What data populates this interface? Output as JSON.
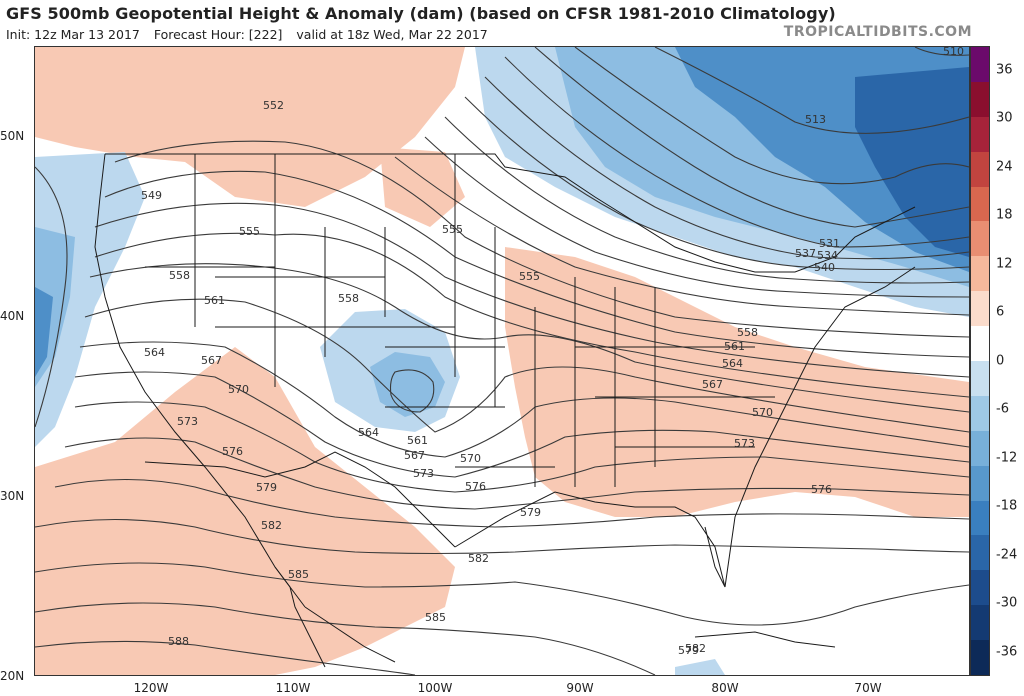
{
  "header": {
    "title": "GFS 500mb Geopotential Height & Anomaly (dam) (based on CFSR 1981-2010 Climatology)",
    "init": "Init: 12z Mar 13 2017",
    "forecast_hour": "Forecast Hour: [222]",
    "valid": "valid at 18z Wed, Mar 22 2017",
    "brand": "TROPICALTIDBITS.COM"
  },
  "latitude_labels": [
    "50N",
    "40N",
    "30N",
    "20N"
  ],
  "longitude_labels": [
    "120W",
    "110W",
    "100W",
    "90W",
    "80W",
    "70W"
  ],
  "colorbar": {
    "labels": [
      "36",
      "30",
      "24",
      "18",
      "12",
      "6",
      "0",
      "-6",
      "-12",
      "-18",
      "-24",
      "-30",
      "-36"
    ],
    "colors": [
      "#6b0a6b",
      "#8a0f2e",
      "#a6233a",
      "#c1443f",
      "#d8674f",
      "#e98e72",
      "#f6b89c",
      "#fbdccc",
      "#ffffff",
      "#c8dff0",
      "#9ec8e6",
      "#78b0da",
      "#5898cc",
      "#3a7fbf",
      "#2a66a8",
      "#1d4c8c",
      "#143a72",
      "#0d2a58"
    ]
  },
  "contour_labels": [
    "552",
    "549",
    "555",
    "558",
    "561",
    "564",
    "567",
    "570",
    "573",
    "576",
    "579",
    "582",
    "585",
    "588",
    "555",
    "558",
    "561",
    "564",
    "567",
    "570",
    "573",
    "576",
    "579",
    "582",
    "585",
    "555",
    "558",
    "561",
    "564",
    "567",
    "570",
    "573",
    "576",
    "579",
    "582",
    "513",
    "531",
    "534",
    "537",
    "540",
    "510",
    "588",
    "582",
    "561",
    "564",
    "567",
    "570",
    "573",
    "576",
    "579",
    "582"
  ],
  "colors": {
    "positive_anomaly": "#f8c9b4",
    "negative_anomaly_light": "#bcd8ee",
    "negative_anomaly_mid": "#8dbde2",
    "negative_anomaly_deep": "#4e8fc8",
    "negative_anomaly_deepest": "#2a66a8",
    "contour_line": "#3a3a3a",
    "border_line": "#1a1a1a"
  }
}
